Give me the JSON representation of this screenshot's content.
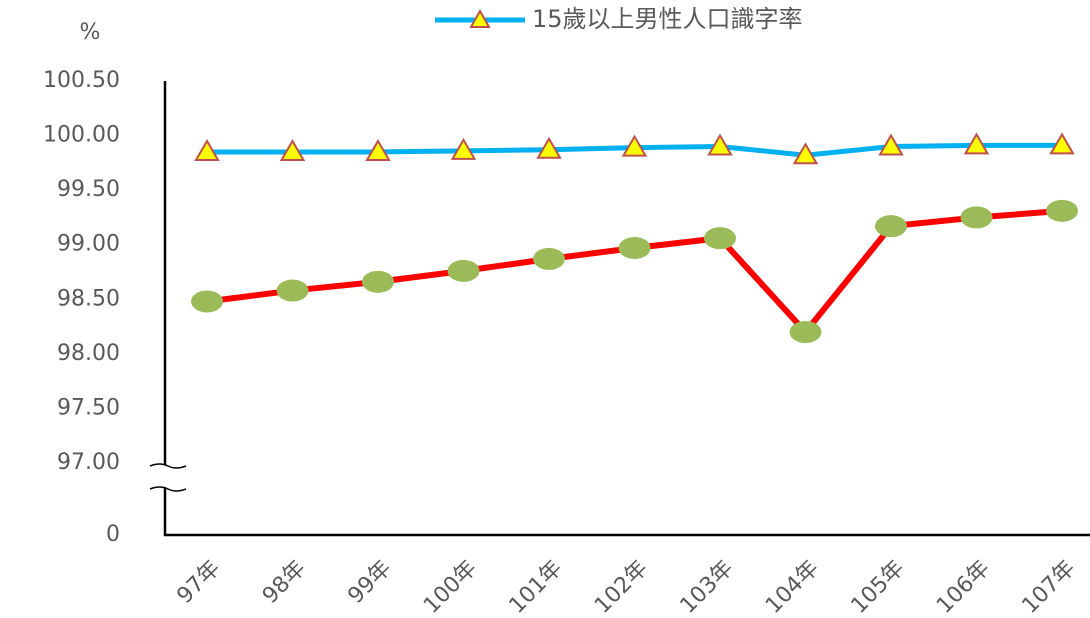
{
  "chart_data": {
    "type": "line",
    "y_label": "%",
    "categories": [
      "97年",
      "98年",
      "99年",
      "100年",
      "101年",
      "102年",
      "103年",
      "104年",
      "105年",
      "106年",
      "107年"
    ],
    "series": [
      {
        "name": "15歲以上男性人口識字率",
        "color": "#00b0f0",
        "marker": "triangle",
        "marker_color": "#ffff00",
        "marker_edge": "#c0504d",
        "values": [
          99.85,
          99.85,
          99.85,
          99.86,
          99.87,
          99.89,
          99.9,
          99.82,
          99.9,
          99.91,
          99.91
        ]
      },
      {
        "color": "#ff0000",
        "marker": "circle",
        "marker_color": "#9bbb59",
        "values": [
          98.48,
          98.58,
          98.66,
          98.76,
          98.87,
          98.97,
          99.06,
          98.2,
          99.17,
          99.25,
          99.31
        ]
      }
    ],
    "ylim": [
      97,
      100.5
    ],
    "axis_break": [
      0,
      97
    ],
    "yticks": [
      0,
      {
        "value": 97,
        "label": "97.00"
      },
      {
        "value": 97.5,
        "label": "97.50"
      },
      {
        "value": 98,
        "label": "98.00"
      },
      {
        "value": 98.5,
        "label": "98.50"
      },
      {
        "value": 99,
        "label": "99.00"
      },
      {
        "value": 99.5,
        "label": "99.50"
      },
      {
        "value": 100,
        "label": "100.00"
      },
      {
        "value": 100.5,
        "label": "100.50"
      }
    ],
    "grid": false,
    "legend": "top"
  }
}
